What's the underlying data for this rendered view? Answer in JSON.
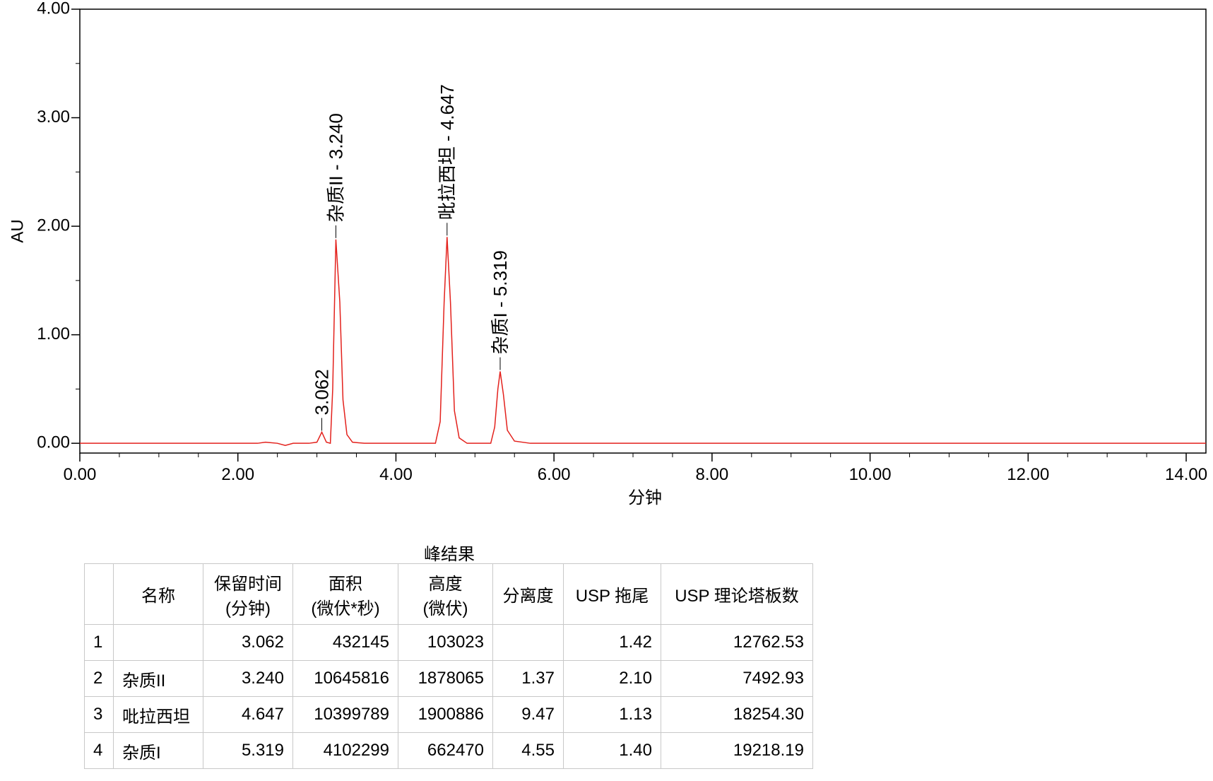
{
  "chart_data": {
    "type": "line",
    "x_label": "分钟",
    "y_label": "AU",
    "xlim": [
      0,
      14.25
    ],
    "ylim": [
      -0.09,
      4.0
    ],
    "xticks": [
      {
        "value": 0,
        "label": "0.00"
      },
      {
        "value": 2,
        "label": "2.00"
      },
      {
        "value": 4,
        "label": "4.00"
      },
      {
        "value": 6,
        "label": "6.00"
      },
      {
        "value": 8,
        "label": "8.00"
      },
      {
        "value": 10,
        "label": "10.00"
      },
      {
        "value": 12,
        "label": "12.00"
      },
      {
        "value": 14,
        "label": "14.00"
      }
    ],
    "yticks": [
      {
        "value": 0,
        "label": "0.00"
      },
      {
        "value": 1,
        "label": "1.00"
      },
      {
        "value": 2,
        "label": "2.00"
      },
      {
        "value": 3,
        "label": "3.00"
      },
      {
        "value": 4,
        "label": "4.00"
      }
    ],
    "xminorticks": [
      0.5,
      1,
      1.5,
      2.5,
      3,
      3.5,
      4.5,
      5,
      5.5,
      6.5,
      7,
      7.5,
      8.5,
      9,
      9.5,
      10.5,
      11,
      11.5,
      12.5,
      13,
      13.5
    ],
    "yminorticks": [
      0.5,
      1.5,
      2.5,
      3.5
    ],
    "x": [
      0,
      2.25,
      2.35,
      2.5,
      2.6,
      2.7,
      2.9,
      3.0,
      3.062,
      3.12,
      3.17,
      3.2,
      3.24,
      3.29,
      3.33,
      3.38,
      3.45,
      3.6,
      4.5,
      4.56,
      4.61,
      4.647,
      4.69,
      4.74,
      4.8,
      4.9,
      5.2,
      5.25,
      5.29,
      5.319,
      5.36,
      5.41,
      5.5,
      5.7,
      14.25
    ],
    "series": [
      {
        "color": "#e3211c",
        "values": [
          0,
          0,
          0.01,
          0,
          -0.02,
          0,
          0,
          0.01,
          0.103,
          0.01,
          0,
          0.5,
          1.878,
          1.3,
          0.4,
          0.08,
          0.01,
          0,
          0,
          0.2,
          1.3,
          1.901,
          1.3,
          0.3,
          0.05,
          0,
          0,
          0.15,
          0.5,
          0.662,
          0.45,
          0.12,
          0.02,
          0,
          0
        ]
      }
    ],
    "annotations": [
      {
        "text": "3.062",
        "x": 3.062,
        "y": 0.103
      },
      {
        "text": "杂质II - 3.240",
        "x": 3.24,
        "y": 1.878
      },
      {
        "text": "吡拉西坦 - 4.647",
        "x": 4.647,
        "y": 1.901
      },
      {
        "text": "杂质I - 5.319",
        "x": 5.319,
        "y": 0.662
      }
    ]
  },
  "table": {
    "title": "峰结果",
    "headers": [
      null,
      [
        "名称"
      ],
      [
        "保留时间",
        "(分钟)"
      ],
      [
        "面积",
        "(微伏*秒)"
      ],
      [
        "高度",
        "(微伏)"
      ],
      [
        "分离度"
      ],
      [
        "USP 拖尾"
      ],
      [
        "USP 理论塔板数"
      ]
    ],
    "rows": [
      [
        "1",
        null,
        "3.062",
        "432145",
        "103023",
        null,
        "1.42",
        "12762.53"
      ],
      [
        "2",
        "杂质II",
        "3.240",
        "10645816",
        "1878065",
        "1.37",
        "2.10",
        "7492.93"
      ],
      [
        "3",
        "吡拉西坦",
        "4.647",
        "10399789",
        "1900886",
        "9.47",
        "1.13",
        "18254.30"
      ],
      [
        "4",
        "杂质I",
        "5.319",
        "4102299",
        "662470",
        "4.55",
        "1.40",
        "19218.19"
      ]
    ]
  }
}
